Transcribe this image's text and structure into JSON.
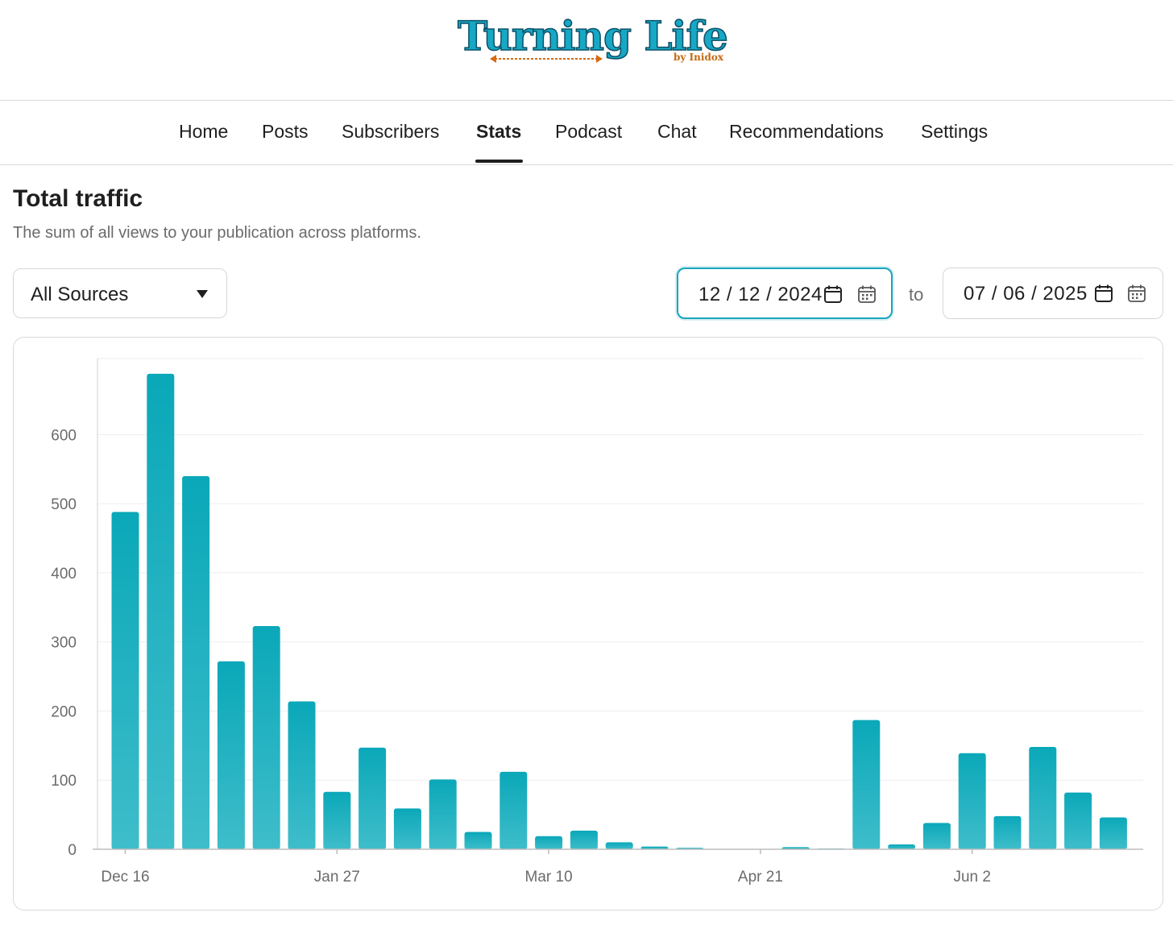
{
  "brand": {
    "title": "Turning Life",
    "subtitle": "by Inidox"
  },
  "nav": {
    "items": [
      {
        "label": "Home",
        "active": false
      },
      {
        "label": "Posts",
        "active": false
      },
      {
        "label": "Subscribers",
        "active": false
      },
      {
        "label": "Stats",
        "active": true
      },
      {
        "label": "Podcast",
        "active": false
      },
      {
        "label": "Chat",
        "active": false
      },
      {
        "label": "Recommendations",
        "active": false
      },
      {
        "label": "Settings",
        "active": false
      }
    ]
  },
  "page": {
    "title": "Total traffic",
    "subtitle": "The sum of all views to your publication across platforms."
  },
  "filters": {
    "source": "All Sources",
    "date_from": "12 / 12 / 2024",
    "to_label": "to",
    "date_to": "07 / 06 / 2025"
  },
  "colors": {
    "accent": "#1aa5bd",
    "bar_top": "#0aa8b9",
    "bar_bottom": "#3fbdca",
    "grid": "#eeeeee",
    "axis_text": "#6b6b6b"
  },
  "chart_data": {
    "type": "bar",
    "x_tick_labels": [
      "Dec 16",
      "Jan 27",
      "Mar 10",
      "Apr 21",
      "Jun 2"
    ],
    "x_tick_bar_index": [
      0,
      6,
      12,
      18,
      24
    ],
    "categories_count": 29,
    "values": [
      488,
      688,
      540,
      272,
      323,
      214,
      83,
      147,
      59,
      101,
      25,
      112,
      19,
      27,
      10,
      4,
      2,
      0,
      0,
      3,
      1,
      187,
      7,
      38,
      139,
      48,
      148,
      82,
      46
    ],
    "y_ticks": [
      0,
      100,
      200,
      300,
      400,
      500,
      600
    ],
    "ylim": [
      0,
      710
    ],
    "grid": true,
    "legend": "none"
  }
}
